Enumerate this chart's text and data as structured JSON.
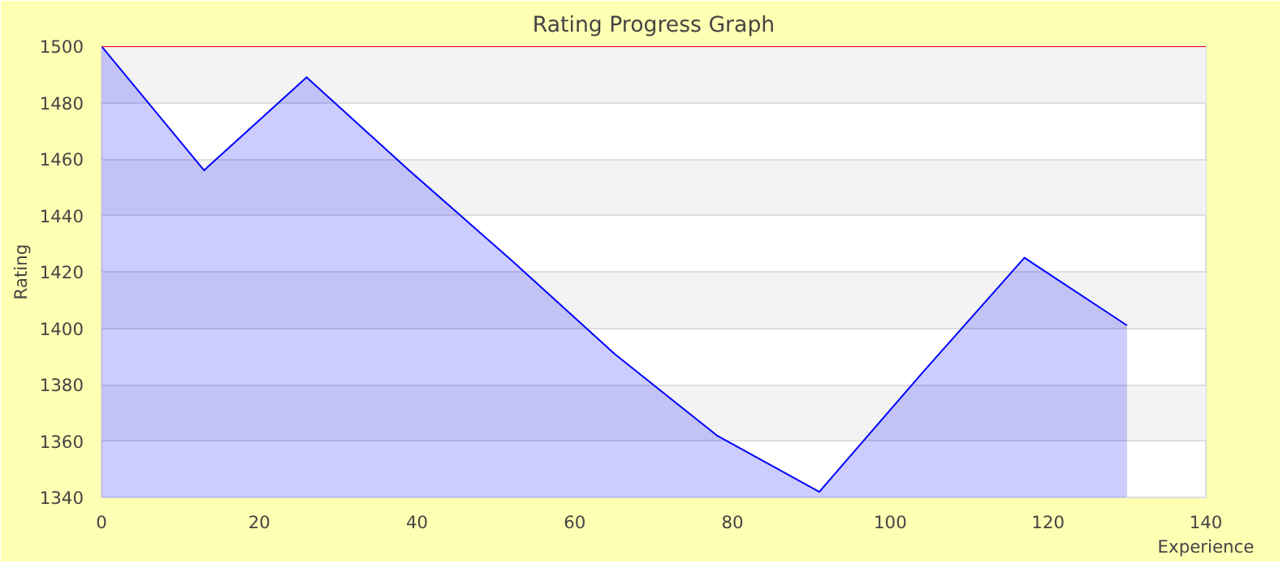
{
  "chart_data": {
    "type": "area",
    "title": "Rating Progress Graph",
    "xlabel": "Experience",
    "ylabel": "Rating",
    "x": [
      0,
      13,
      26,
      39,
      52,
      65,
      78,
      91,
      104,
      117,
      130
    ],
    "series": [
      {
        "color": "#0000ff",
        "values": [
          1500,
          1456,
          1489,
          1456,
          1424,
          1391,
          1362,
          1342,
          1384,
          1425,
          1401
        ]
      }
    ],
    "xlim": [
      0,
      140
    ],
    "xticks": [
      0,
      20,
      40,
      60,
      80,
      100,
      120,
      140
    ],
    "ylim": [
      1340,
      1500
    ],
    "yticks": [
      1340,
      1360,
      1380,
      1400,
      1420,
      1440,
      1460,
      1480,
      1500
    ],
    "ref_lines": [
      {
        "axis": "y",
        "value": 1500,
        "label": null,
        "color": "#ff0000"
      }
    ],
    "grid": "y"
  }
}
